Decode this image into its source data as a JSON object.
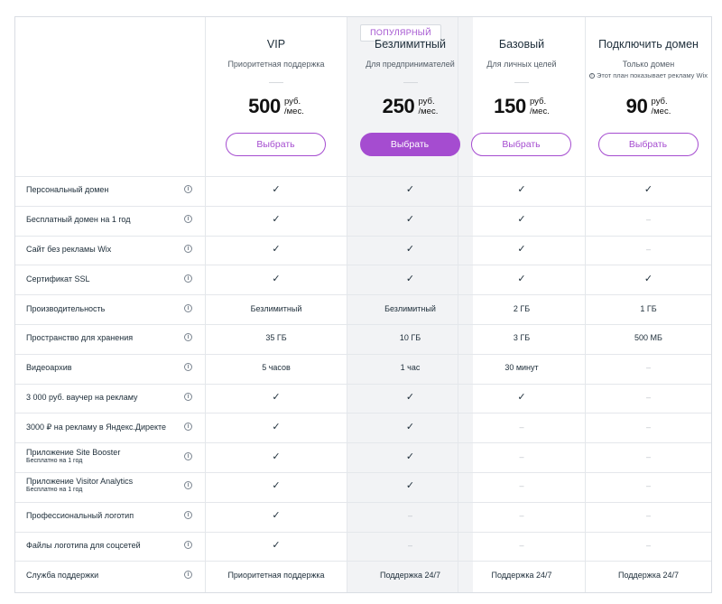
{
  "badge": "ПОПУЛЯРНЫЙ",
  "plans": [
    {
      "name": "VIP",
      "subtitle": "Приоритетная поддержка",
      "note": "",
      "price": "500",
      "unit": "руб.",
      "per": "/мес.",
      "button": "Выбрать",
      "primary": false
    },
    {
      "name": "Безлимитный",
      "subtitle": "Для предпринимателей",
      "note": "",
      "price": "250",
      "unit": "руб.",
      "per": "/мес.",
      "button": "Выбрать",
      "primary": true
    },
    {
      "name": "Базовый",
      "subtitle": "Для личных целей",
      "note": "",
      "price": "150",
      "unit": "руб.",
      "per": "/мес.",
      "button": "Выбрать",
      "primary": false
    },
    {
      "name": "Подключить домен",
      "subtitle": "Только домен",
      "note": "Этот план показывает рекламу Wix",
      "price": "90",
      "unit": "руб.",
      "per": "/мес.",
      "button": "Выбрать",
      "primary": false
    }
  ],
  "features": [
    {
      "label": "Персональный домен",
      "sub": "",
      "values": [
        "✓",
        "✓",
        "✓",
        "✓"
      ]
    },
    {
      "label": "Бесплатный домен на 1 год",
      "sub": "",
      "values": [
        "✓",
        "✓",
        "✓",
        "–"
      ]
    },
    {
      "label": "Сайт без рекламы Wix",
      "sub": "",
      "values": [
        "✓",
        "✓",
        "✓",
        "–"
      ]
    },
    {
      "label": "Сертификат SSL",
      "sub": "",
      "values": [
        "✓",
        "✓",
        "✓",
        "✓"
      ]
    },
    {
      "label": "Производительность",
      "sub": "",
      "values": [
        "Безлимитный",
        "Безлимитный",
        "2 ГБ",
        "1 ГБ"
      ]
    },
    {
      "label": "Пространство для хранения",
      "sub": "",
      "values": [
        "35 ГБ",
        "10 ГБ",
        "3 ГБ",
        "500 МБ"
      ]
    },
    {
      "label": "Видеоархив",
      "sub": "",
      "values": [
        "5 часов",
        "1 час",
        "30 минут",
        "–"
      ]
    },
    {
      "label": "3 000 руб. ваучер на рекламу",
      "sub": "",
      "values": [
        "✓",
        "✓",
        "✓",
        "–"
      ]
    },
    {
      "label": "3000 ₽ на рекламу в Яндекс.Директе",
      "sub": "",
      "values": [
        "✓",
        "✓",
        "–",
        "–"
      ]
    },
    {
      "label": "Приложение Site Booster",
      "sub": "Бесплатно на 1 год",
      "values": [
        "✓",
        "✓",
        "–",
        "–"
      ]
    },
    {
      "label": "Приложение Visitor Analytics",
      "sub": "Бесплатно на 1 год",
      "values": [
        "✓",
        "✓",
        "–",
        "–"
      ]
    },
    {
      "label": "Профессиональный логотип",
      "sub": "",
      "values": [
        "✓",
        "–",
        "–",
        "–"
      ]
    },
    {
      "label": "Файлы логотипа для соцсетей",
      "sub": "",
      "values": [
        "✓",
        "–",
        "–",
        "–"
      ]
    },
    {
      "label": "Служба поддержки",
      "sub": "",
      "values": [
        "Приоритетная поддержка",
        "Поддержка 24/7",
        "Поддержка 24/7",
        "Поддержка 24/7"
      ]
    }
  ],
  "info_icon": "ⓘ"
}
